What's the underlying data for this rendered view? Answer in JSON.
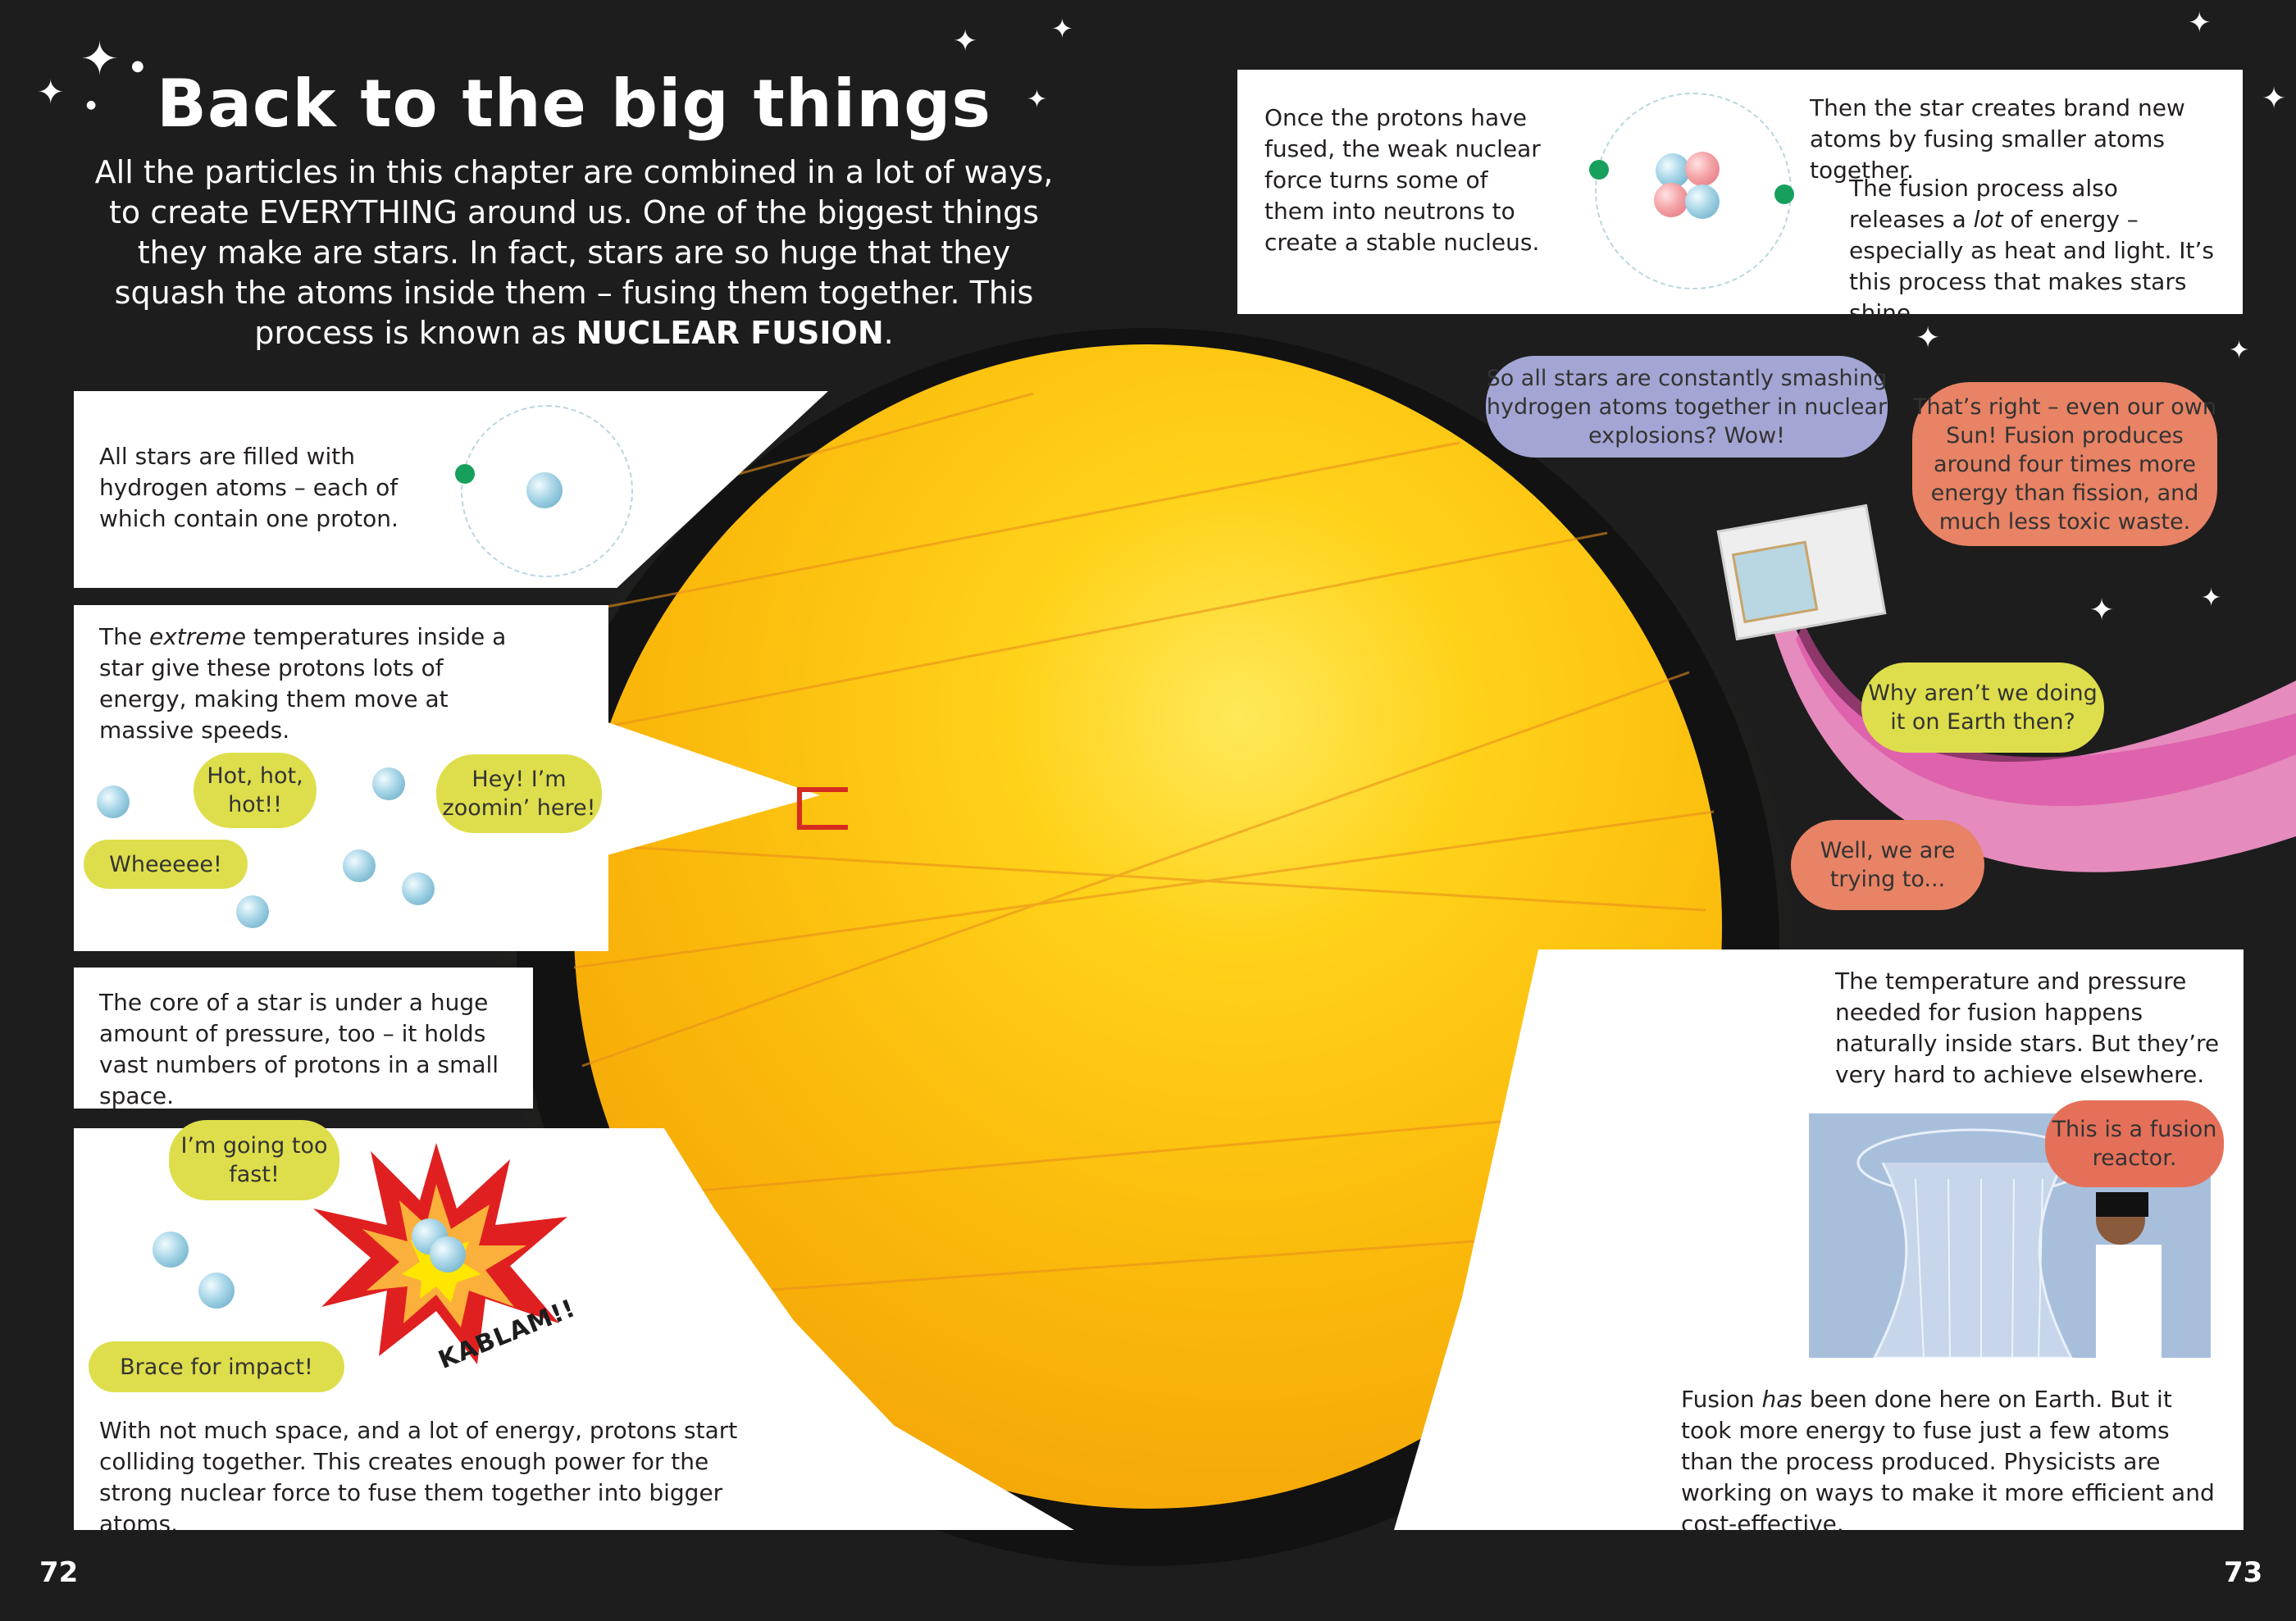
{
  "title": "Back to the big things",
  "intro": {
    "text": "All the particles in this chapter are combined in a lot of ways, to create EVERYTHING around us. One of the biggest things they make are stars. In fact, stars are so huge that they squash the atoms inside them – fusing them together. This process is known as",
    "bold": "NUCLEAR FUSION",
    "end": "."
  },
  "top_panel": {
    "left_text": "Once the protons have fused, the weak nuclear force turns some of them into neutrons to create a stable nucleus.",
    "right_text_1": "Then the star creates brand new atoms by fusing smaller atoms together.",
    "right_text_2_pre": "The fusion process also releases a",
    "right_text_2_em": "lot",
    "right_text_2_post": "of energy – especially as heat and light. It’s this process that makes stars shine."
  },
  "left_panels": {
    "hydrogen": "All stars are filled with hydrogen atoms – each of which contain one proton.",
    "temperature_pre": "The",
    "temperature_em": "extreme",
    "temperature_post": "temperatures inside a star give these protons lots of energy, making them move at massive speeds.",
    "pressure": "The core of a star is under a huge amount of pressure, too – it holds vast numbers of protons in a small space.",
    "colliding": "With not much space, and a lot of energy, protons start colliding together. This creates enough power for the strong nuclear force to fuse them together into bigger atoms."
  },
  "bubbles": {
    "hot": "Hot, hot, hot!!",
    "zoomin": "Hey! I’m zoomin’ here!",
    "wheee": "Wheeeee!",
    "too_fast": "I’m going too fast!",
    "brace": "Brace for impact!",
    "kablam": "KABLAM!!",
    "smashing": "So all stars are constantly smashing hydrogen atoms together in nuclear explosions? Wow!",
    "thats_right": "That’s right – even our own Sun! Fusion produces around four times more energy than fission, and much less toxic waste.",
    "why_not": "Why aren’t we doing it on Earth then?",
    "trying": "Well, we are trying to...",
    "reactor": "This is a fusion reactor."
  },
  "right_panel": {
    "text_top": "The temperature and pressure needed for fusion happens naturally inside stars. But they’re very hard to achieve elsewhere.",
    "text_bottom_pre": "Fusion",
    "text_bottom_em": "has",
    "text_bottom_post": "been done here on Earth. But it took more energy to fuse just a few atoms than the process produced. Physicists are working on ways to make it more efficient and cost-effective."
  },
  "page_numbers": {
    "left": "72",
    "right": "73"
  },
  "colors": {
    "background": "#1d1d1d",
    "sun": "#ffc20e",
    "bubble_yellow": "#dede4c",
    "bubble_purple": "#a3a6d4",
    "bubble_orange": "#e88365",
    "electron": "#17a05d"
  }
}
